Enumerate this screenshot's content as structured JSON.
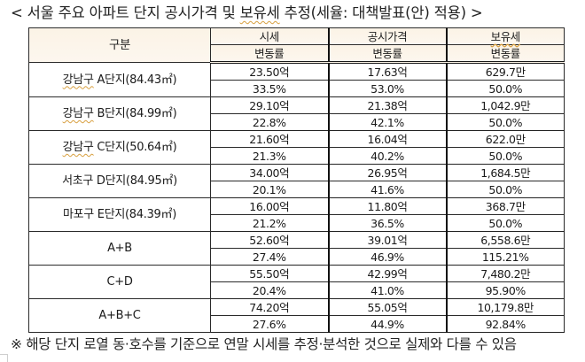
{
  "title": {
    "prefix": "< 서울 주요 아파트 단지 공시가격 및 ",
    "underlined": "보유세",
    "suffix": " 추정(세율: 대책발표(안) 적용) >"
  },
  "table": {
    "headers": {
      "category": "구분",
      "market_price": "시세",
      "official_price": "공시가격",
      "holding_tax": "보유세",
      "change_rate": "변동률"
    },
    "rows": [
      {
        "name_prefix": "강남구",
        "name_suffix": " A단지(84.43㎡)",
        "market_price": "23.50억",
        "official_price": "17.63억",
        "holding_tax": "629.7만",
        "market_rate": "33.5%",
        "official_rate": "53.0%",
        "tax_rate": "50.0%"
      },
      {
        "name_prefix": "강남구",
        "name_suffix": " B단지(84.99㎡)",
        "market_price": "29.10억",
        "official_price": "21.38억",
        "holding_tax": "1,042.9만",
        "market_rate": "22.8%",
        "official_rate": "42.1%",
        "tax_rate": "50.0%"
      },
      {
        "name_prefix": "강남구",
        "name_suffix": " C단지(50.64㎡)",
        "market_price": "21.60억",
        "official_price": "16.04억",
        "holding_tax": "622.0만",
        "market_rate": "21.3%",
        "official_rate": "40.2%",
        "tax_rate": "50.0%"
      },
      {
        "name_prefix": "",
        "name_suffix": "서초구 D단지(84.95㎡)",
        "market_price": "34.00억",
        "official_price": "26.95억",
        "holding_tax": "1,684.5만",
        "market_rate": "20.1%",
        "official_rate": "41.6%",
        "tax_rate": "50.0%"
      },
      {
        "name_prefix": "",
        "name_suffix": "마포구 E단지(84.39㎡)",
        "market_price": "16.00억",
        "official_price": "11.80억",
        "holding_tax": "368.7만",
        "market_rate": "21.2%",
        "official_rate": "36.5%",
        "tax_rate": "50.0%"
      },
      {
        "name_prefix": "",
        "name_suffix": "A+B",
        "market_price": "52.60억",
        "official_price": "39.01억",
        "holding_tax": "6,558.6만",
        "market_rate": "27.4%",
        "official_rate": "46.9%",
        "tax_rate": "115.21%"
      },
      {
        "name_prefix": "",
        "name_suffix": "C+D",
        "market_price": "55.50억",
        "official_price": "42.99억",
        "holding_tax": "7,480.2만",
        "market_rate": "20.4%",
        "official_rate": "41.0%",
        "tax_rate": "95.90%"
      },
      {
        "name_prefix": "",
        "name_suffix": "A+B+C",
        "market_price": "74.20억",
        "official_price": "55.05억",
        "holding_tax": "10,179.8만",
        "market_rate": "27.6%",
        "official_rate": "44.9%",
        "tax_rate": "92.84%"
      }
    ]
  },
  "note": "※ 해당 단지 로열 동·호수를 기준으로 연말 시세를 추정·분석한 것으로 실제와 다를 수 있음",
  "colors": {
    "header_bg": "#fbf3e6",
    "border": "#1a1a1a",
    "spellcheck_underline": "#d8a040"
  }
}
